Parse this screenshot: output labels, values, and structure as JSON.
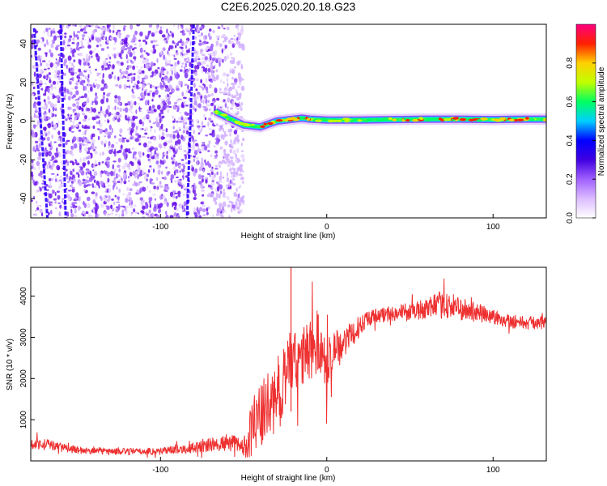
{
  "title": "C2E6.2025.020.20.18.G23",
  "colors": {
    "signal": "#ff0000",
    "snr_line": "#ee3030",
    "noise": "#8a2be2",
    "axis": "#000000"
  },
  "chart_data": [
    {
      "type": "heatmap",
      "xlabel": "Height of straight line (km)",
      "ylabel": "Frequency (Hz)",
      "xlim": [
        -178,
        132
      ],
      "ylim": [
        -50,
        50
      ],
      "x_ticks": [
        -100,
        0,
        100
      ],
      "y_ticks": [
        -40,
        -20,
        0,
        20,
        40
      ],
      "noise_region_x": [
        -178,
        -50
      ],
      "signal_track": {
        "x": [
          -67,
          -60,
          -50,
          -40,
          -30,
          -20,
          -15,
          -10,
          0,
          20,
          40,
          60,
          80,
          100,
          120,
          132
        ],
        "y": [
          5,
          2,
          -2,
          -3,
          0,
          1,
          1.5,
          1,
          0.5,
          0.5,
          0.8,
          1,
          1,
          0.8,
          1,
          1
        ]
      },
      "colorbar": {
        "label": "Normalized spectral amplitude",
        "ticks": [
          "0.0",
          "0.2",
          "0.4",
          "0.6",
          "0.8"
        ],
        "range": [
          0,
          1
        ],
        "stops": [
          "#ffffff",
          "#dcbcff",
          "#a060ff",
          "#4000e0",
          "#0000ff",
          "#00d0ff",
          "#00ff60",
          "#c0ff00",
          "#ffd000",
          "#ff2000",
          "#ff0080"
        ]
      }
    },
    {
      "type": "line",
      "xlabel": "Height of straight line (km)",
      "ylabel": "SNR (10 * v/v)",
      "xlim": [
        -178,
        132
      ],
      "ylim": [
        0,
        4700
      ],
      "x_ticks": [
        -100,
        0,
        100
      ],
      "y_ticks": [
        1000,
        2000,
        3000,
        4000
      ],
      "series": [
        {
          "x": [
            -178,
            -170,
            -160,
            -150,
            -140,
            -130,
            -120,
            -110,
            -100,
            -90,
            -80,
            -70,
            -60,
            -55,
            -50,
            -45,
            -40,
            -35,
            -30,
            -25,
            -22,
            -20,
            -15,
            -10,
            -5,
            0,
            5,
            10,
            15,
            20,
            25,
            30,
            40,
            50,
            60,
            70,
            80,
            90,
            100,
            110,
            120,
            132
          ],
          "y": [
            400,
            420,
            330,
            260,
            240,
            230,
            230,
            230,
            240,
            280,
            320,
            380,
            450,
            420,
            300,
            800,
            1100,
            1300,
            1600,
            2100,
            2500,
            2300,
            2500,
            2700,
            2900,
            2300,
            2800,
            2900,
            3000,
            3300,
            3500,
            3500,
            3600,
            3600,
            3700,
            3800,
            3700,
            3600,
            3500,
            3400,
            3350,
            3350
          ],
          "noise_amp": [
            120,
            140,
            110,
            90,
            80,
            80,
            80,
            80,
            90,
            100,
            130,
            180,
            200,
            220,
            250,
            700,
            800,
            850,
            900,
            800,
            900,
            800,
            750,
            750,
            800,
            700,
            450,
            400,
            350,
            250,
            200,
            200,
            200,
            220,
            250,
            350,
            300,
            250,
            200,
            180,
            170,
            150
          ]
        }
      ]
    }
  ]
}
